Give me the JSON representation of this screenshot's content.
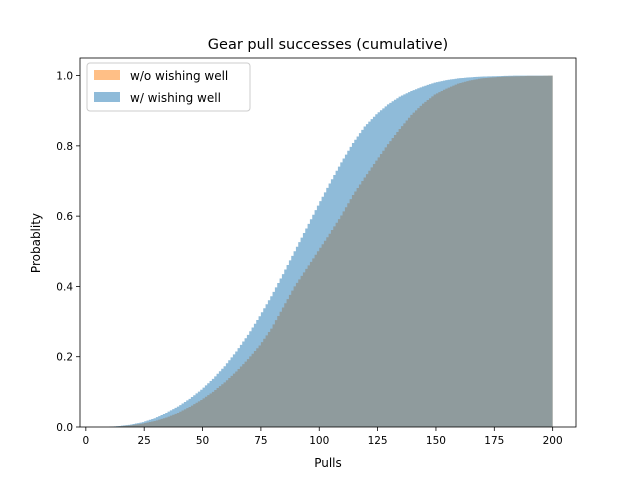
{
  "chart_data": {
    "type": "area",
    "title": "Gear pull successes (cumulative)",
    "xlabel": "Pulls",
    "ylabel": "Probablity",
    "xlim": [
      -2.5,
      210
    ],
    "ylim": [
      0,
      1.05
    ],
    "xticks": [
      0,
      25,
      50,
      75,
      100,
      125,
      150,
      175,
      200
    ],
    "xtick_labels": [
      "0",
      "25",
      "50",
      "75",
      "100",
      "125",
      "150",
      "175",
      "200"
    ],
    "yticks": [
      0,
      0.2,
      0.4,
      0.6,
      0.8,
      1.0
    ],
    "ytick_labels": [
      "0.0",
      "0.2",
      "0.4",
      "0.6",
      "0.8",
      "1.0"
    ],
    "legend_position": "top-left",
    "grid": false,
    "series": [
      {
        "name": "w/o wishing well",
        "color": "#ff7f0e",
        "x": [
          0,
          10,
          15,
          20,
          25,
          30,
          35,
          40,
          45,
          50,
          55,
          60,
          65,
          70,
          75,
          80,
          85,
          90,
          95,
          100,
          105,
          110,
          115,
          120,
          125,
          130,
          135,
          140,
          145,
          150,
          155,
          160,
          165,
          170,
          175,
          180,
          185,
          190,
          195,
          200
        ],
        "values": [
          0.0,
          0.0,
          0.002,
          0.005,
          0.01,
          0.017,
          0.027,
          0.04,
          0.057,
          0.077,
          0.1,
          0.127,
          0.158,
          0.193,
          0.232,
          0.28,
          0.34,
          0.4,
          0.45,
          0.5,
          0.55,
          0.602,
          0.66,
          0.71,
          0.758,
          0.805,
          0.848,
          0.888,
          0.92,
          0.946,
          0.963,
          0.977,
          0.986,
          0.992,
          0.995,
          0.997,
          0.998,
          0.999,
          0.999,
          1.0
        ]
      },
      {
        "name": "w/ wishing well",
        "color": "#1f77b4",
        "x": [
          0,
          10,
          15,
          20,
          25,
          30,
          35,
          40,
          45,
          50,
          55,
          60,
          65,
          70,
          75,
          80,
          85,
          90,
          95,
          100,
          105,
          110,
          115,
          120,
          125,
          130,
          135,
          140,
          145,
          150,
          155,
          160,
          165,
          170,
          175,
          180,
          185,
          190,
          195,
          200
        ],
        "values": [
          0.0,
          0.0,
          0.003,
          0.007,
          0.014,
          0.025,
          0.04,
          0.058,
          0.08,
          0.106,
          0.137,
          0.173,
          0.215,
          0.262,
          0.315,
          0.372,
          0.435,
          0.5,
          0.565,
          0.63,
          0.693,
          0.753,
          0.808,
          0.855,
          0.89,
          0.918,
          0.94,
          0.956,
          0.969,
          0.98,
          0.987,
          0.992,
          0.995,
          0.997,
          0.998,
          0.999,
          1.0,
          1.0,
          1.0,
          1.0
        ]
      }
    ]
  }
}
